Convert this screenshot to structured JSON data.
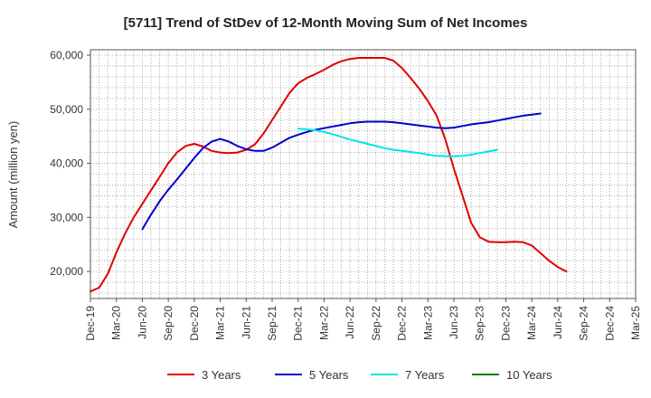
{
  "chart_data": {
    "type": "line",
    "title": "[5711]  Trend of StDev of 12-Month Moving Sum of Net Incomes",
    "xlabel": "",
    "ylabel": "Amount (million yen)",
    "ylim": [
      15000,
      61000
    ],
    "yticks": [
      20000,
      30000,
      40000,
      50000,
      60000
    ],
    "ytick_labels": [
      "20,000",
      "30,000",
      "40,000",
      "50,000",
      "60,000"
    ],
    "xticks": [
      "Dec-19",
      "Mar-20",
      "Jun-20",
      "Sep-20",
      "Dec-20",
      "Mar-21",
      "Jun-21",
      "Sep-21",
      "Dec-21",
      "Mar-22",
      "Jun-22",
      "Sep-22",
      "Dec-22",
      "Mar-23",
      "Jun-23",
      "Sep-23",
      "Dec-23",
      "Mar-24",
      "Jun-24",
      "Sep-24",
      "Dec-24",
      "Mar-25"
    ],
    "grid": true,
    "legend_position": "bottom",
    "series": [
      {
        "name": "3 Years",
        "color": "#e00000",
        "points": [
          [
            0,
            16300
          ],
          [
            1,
            17000
          ],
          [
            2,
            19500
          ],
          [
            3,
            23500
          ],
          [
            4,
            27000
          ],
          [
            5,
            30000
          ],
          [
            6,
            32500
          ],
          [
            7,
            35000
          ],
          [
            8,
            37500
          ],
          [
            9,
            40000
          ],
          [
            10,
            42000
          ],
          [
            11,
            43200
          ],
          [
            12,
            43600
          ],
          [
            13,
            43100
          ],
          [
            14,
            42300
          ],
          [
            15,
            42000
          ],
          [
            16,
            41900
          ],
          [
            17,
            42000
          ],
          [
            18,
            42500
          ],
          [
            19,
            43500
          ],
          [
            20,
            45500
          ],
          [
            21,
            48000
          ],
          [
            22,
            50500
          ],
          [
            23,
            53000
          ],
          [
            24,
            54800
          ],
          [
            25,
            55800
          ],
          [
            26,
            56500
          ],
          [
            27,
            57300
          ],
          [
            28,
            58200
          ],
          [
            29,
            58900
          ],
          [
            30,
            59300
          ],
          [
            31,
            59500
          ],
          [
            32,
            59500
          ],
          [
            33,
            59500
          ],
          [
            34,
            59500
          ],
          [
            35,
            59000
          ],
          [
            36,
            57600
          ],
          [
            37,
            55800
          ],
          [
            38,
            53800
          ],
          [
            39,
            51500
          ],
          [
            40,
            48800
          ],
          [
            41,
            44500
          ],
          [
            42,
            39000
          ],
          [
            43,
            34000
          ],
          [
            44,
            29000
          ],
          [
            45,
            26300
          ],
          [
            46,
            25500
          ],
          [
            47,
            25400
          ],
          [
            48,
            25400
          ],
          [
            49,
            25500
          ],
          [
            50,
            25400
          ],
          [
            51,
            24800
          ],
          [
            52,
            23400
          ],
          [
            53,
            22000
          ],
          [
            54,
            20800
          ],
          [
            55,
            20000
          ]
        ]
      },
      {
        "name": "5 Years",
        "color": "#0000cc",
        "points": [
          [
            6,
            27800
          ],
          [
            7,
            30500
          ],
          [
            8,
            33000
          ],
          [
            9,
            35100
          ],
          [
            10,
            37000
          ],
          [
            11,
            39000
          ],
          [
            12,
            41000
          ],
          [
            13,
            42800
          ],
          [
            14,
            44000
          ],
          [
            15,
            44500
          ],
          [
            16,
            44000
          ],
          [
            17,
            43200
          ],
          [
            18,
            42600
          ],
          [
            19,
            42300
          ],
          [
            20,
            42300
          ],
          [
            21,
            42900
          ],
          [
            22,
            43800
          ],
          [
            23,
            44700
          ],
          [
            24,
            45300
          ],
          [
            25,
            45800
          ],
          [
            26,
            46200
          ],
          [
            27,
            46500
          ],
          [
            28,
            46800
          ],
          [
            29,
            47100
          ],
          [
            30,
            47400
          ],
          [
            31,
            47600
          ],
          [
            32,
            47700
          ],
          [
            33,
            47700
          ],
          [
            34,
            47700
          ],
          [
            35,
            47600
          ],
          [
            36,
            47400
          ],
          [
            37,
            47200
          ],
          [
            38,
            47000
          ],
          [
            39,
            46800
          ],
          [
            40,
            46600
          ],
          [
            41,
            46500
          ],
          [
            42,
            46600
          ],
          [
            43,
            46900
          ],
          [
            44,
            47200
          ],
          [
            45,
            47400
          ],
          [
            46,
            47600
          ],
          [
            47,
            47900
          ],
          [
            48,
            48200
          ],
          [
            49,
            48500
          ],
          [
            50,
            48800
          ],
          [
            51,
            49000
          ],
          [
            52,
            49200
          ]
        ]
      },
      {
        "name": "7 Years",
        "color": "#00e5e5",
        "points": [
          [
            24,
            46400
          ],
          [
            25,
            46300
          ],
          [
            26,
            46100
          ],
          [
            27,
            45800
          ],
          [
            28,
            45400
          ],
          [
            29,
            44900
          ],
          [
            30,
            44400
          ],
          [
            31,
            44000
          ],
          [
            32,
            43600
          ],
          [
            33,
            43200
          ],
          [
            34,
            42800
          ],
          [
            35,
            42500
          ],
          [
            36,
            42300
          ],
          [
            37,
            42100
          ],
          [
            38,
            41900
          ],
          [
            39,
            41600
          ],
          [
            40,
            41400
          ],
          [
            41,
            41300
          ],
          [
            42,
            41300
          ],
          [
            43,
            41400
          ],
          [
            44,
            41600
          ],
          [
            45,
            41900
          ],
          [
            46,
            42200
          ],
          [
            47,
            42500
          ]
        ]
      },
      {
        "name": "10 Years",
        "color": "#008000",
        "points": []
      }
    ]
  }
}
